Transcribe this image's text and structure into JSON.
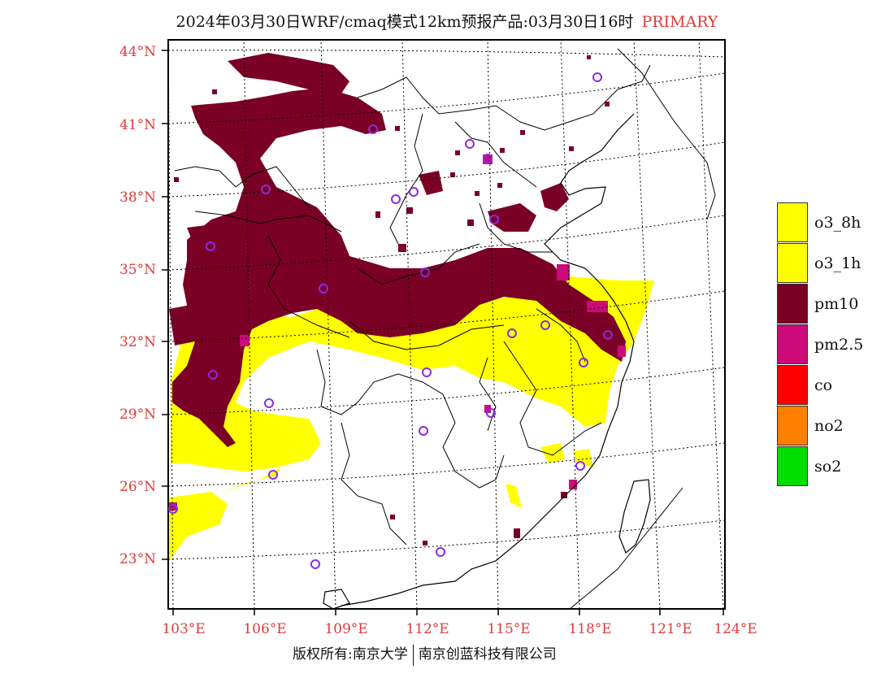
{
  "title": {
    "main": "2024年03月30日WRF/cmaq模式12km预报产品:03月30日16时",
    "tag": "PRIMARY"
  },
  "axes": {
    "latitude_labels": [
      "44°N",
      "41°N",
      "38°N",
      "35°N",
      "32°N",
      "29°N",
      "26°N",
      "23°N"
    ],
    "longitude_labels": [
      "103°E",
      "106°E",
      "109°E",
      "112°E",
      "115°E",
      "118°E",
      "121°E",
      "124°E"
    ]
  },
  "legend": [
    {
      "label": "o3_8h",
      "color": "#ffff00"
    },
    {
      "label": "o3_1h",
      "color": "#ffff00"
    },
    {
      "label": "pm10",
      "color": "#7a0026"
    },
    {
      "label": "pm2.5",
      "color": "#cc0a7a"
    },
    {
      "label": "co",
      "color": "#ff0000"
    },
    {
      "label": "no2",
      "color": "#ff7f00"
    },
    {
      "label": "so2",
      "color": "#00dd00"
    }
  ],
  "colors": {
    "label_red": "#e03b3b",
    "station_marker": "#8a2be2",
    "pm10": "#7a0026",
    "o3": "#ffff00",
    "pm25": "#cc0a7a"
  },
  "footer": {
    "left": "版权所有:南京大学",
    "right": "南京创蓝科技有限公司"
  }
}
